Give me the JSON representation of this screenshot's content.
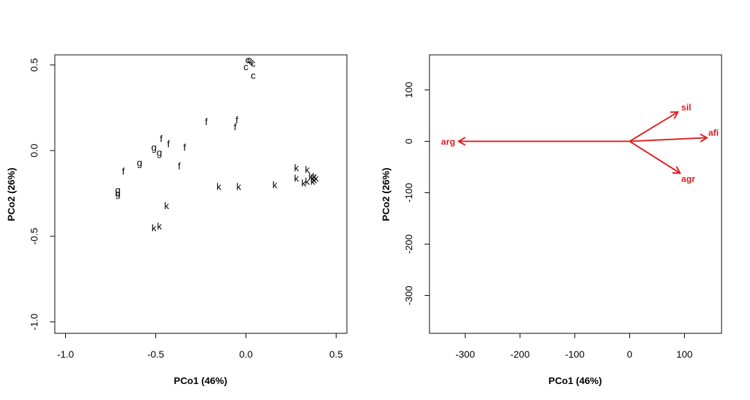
{
  "chart_data": [
    {
      "type": "scatter",
      "xlabel": "PCo1 (46%)",
      "ylabel": "PCo2 (26%)",
      "xlim": [
        -1.0,
        0.5
      ],
      "ylim": [
        -1.0,
        0.5
      ],
      "xticks": [
        -1.0,
        -0.5,
        0.0,
        0.5
      ],
      "xtick_labels": [
        "-1.0",
        "-0.5",
        "0.0",
        "0.5"
      ],
      "yticks": [
        -1.0,
        -0.5,
        0.0,
        0.5
      ],
      "ytick_labels": [
        "-1.0",
        "-0.5",
        "0.0",
        "0.5"
      ],
      "points": [
        {
          "label": "c",
          "x": 0.01,
          "y": 0.53
        },
        {
          "label": "c",
          "x": 0.02,
          "y": 0.53
        },
        {
          "label": "c",
          "x": 0.03,
          "y": 0.52
        },
        {
          "label": "c",
          "x": 0.04,
          "y": 0.51
        },
        {
          "label": "c",
          "x": 0.0,
          "y": 0.49
        },
        {
          "label": "c",
          "x": 0.04,
          "y": 0.44
        },
        {
          "label": "f",
          "x": -0.22,
          "y": 0.17
        },
        {
          "label": "f",
          "x": -0.05,
          "y": 0.18
        },
        {
          "label": "f",
          "x": -0.06,
          "y": 0.14
        },
        {
          "label": "f",
          "x": -0.47,
          "y": 0.07
        },
        {
          "label": "f",
          "x": -0.43,
          "y": 0.04
        },
        {
          "label": "f",
          "x": -0.34,
          "y": 0.02
        },
        {
          "label": "f",
          "x": -0.37,
          "y": -0.09
        },
        {
          "label": "f",
          "x": -0.68,
          "y": -0.12
        },
        {
          "label": "g",
          "x": -0.51,
          "y": 0.02
        },
        {
          "label": "g",
          "x": -0.48,
          "y": -0.01
        },
        {
          "label": "g",
          "x": -0.59,
          "y": -0.07
        },
        {
          "label": "g",
          "x": -0.71,
          "y": -0.23
        },
        {
          "label": "g",
          "x": -0.71,
          "y": -0.25
        },
        {
          "label": "k",
          "x": -0.15,
          "y": -0.21
        },
        {
          "label": "k",
          "x": -0.04,
          "y": -0.21
        },
        {
          "label": "k",
          "x": 0.16,
          "y": -0.2
        },
        {
          "label": "k",
          "x": 0.28,
          "y": -0.1
        },
        {
          "label": "k",
          "x": 0.34,
          "y": -0.11
        },
        {
          "label": "k",
          "x": 0.28,
          "y": -0.16
        },
        {
          "label": "k",
          "x": 0.34,
          "y": -0.18
        },
        {
          "label": "k",
          "x": 0.32,
          "y": -0.19
        },
        {
          "label": "k",
          "x": 0.36,
          "y": -0.15
        },
        {
          "label": "k",
          "x": 0.37,
          "y": -0.16
        },
        {
          "label": "k",
          "x": 0.38,
          "y": -0.17
        },
        {
          "label": "k",
          "x": 0.37,
          "y": -0.18
        },
        {
          "label": "k",
          "x": 0.39,
          "y": -0.16
        },
        {
          "label": "k",
          "x": 0.38,
          "y": -0.15
        },
        {
          "label": "k",
          "x": -0.44,
          "y": -0.32
        },
        {
          "label": "k",
          "x": -0.48,
          "y": -0.44
        },
        {
          "label": "k",
          "x": -0.51,
          "y": -0.45
        }
      ]
    },
    {
      "type": "vector",
      "xlabel": "PCo1 (46%)",
      "ylabel": "PCo2 (26%)",
      "xlim": [
        -355,
        170
      ],
      "ylim": [
        -370,
        170
      ],
      "xticks": [
        -300,
        -200,
        -100,
        0,
        100
      ],
      "xtick_labels": [
        "-300",
        "-200",
        "-100",
        "0",
        "100"
      ],
      "yticks": [
        -300,
        -200,
        -100,
        0,
        100
      ],
      "ytick_labels": [
        "-300",
        "-200",
        "-100",
        "0",
        "100"
      ],
      "color": "#dd1f1f",
      "vectors": [
        {
          "label": "sil",
          "x": 88,
          "y": 57
        },
        {
          "label": "afi",
          "x": 141,
          "y": 7
        },
        {
          "label": "arg",
          "x": -312,
          "y": 0
        },
        {
          "label": "agr",
          "x": 92,
          "y": -62
        }
      ]
    }
  ]
}
